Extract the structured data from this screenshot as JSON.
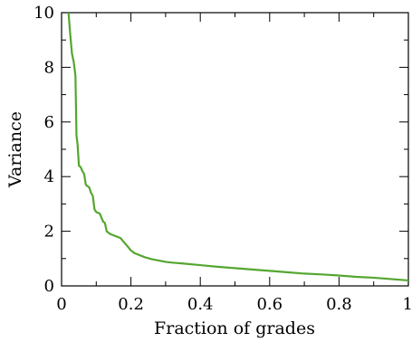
{
  "chart_data": {
    "type": "line",
    "title": "",
    "xlabel": "Fraction of grades",
    "ylabel": "Variance",
    "xlim": [
      0,
      1
    ],
    "ylim": [
      0,
      10
    ],
    "grid": false,
    "legend": "none",
    "x_ticks": [
      "0",
      "0.2",
      "0.4",
      "0.6",
      "0.8",
      "1"
    ],
    "x_tick_values": [
      0,
      0.2,
      0.4,
      0.6,
      0.8,
      1
    ],
    "y_ticks": [
      "0",
      "2",
      "4",
      "6",
      "8",
      "10"
    ],
    "y_tick_values": [
      0,
      2,
      4,
      6,
      8,
      10
    ],
    "series": [
      {
        "color": "#55a630",
        "x": [
          0.02,
          0.025,
          0.03,
          0.035,
          0.04,
          0.043,
          0.046,
          0.05,
          0.055,
          0.06,
          0.065,
          0.07,
          0.075,
          0.08,
          0.085,
          0.09,
          0.095,
          0.1,
          0.11,
          0.12,
          0.125,
          0.13,
          0.14,
          0.15,
          0.16,
          0.17,
          0.18,
          0.19,
          0.2,
          0.21,
          0.22,
          0.24,
          0.26,
          0.28,
          0.3,
          0.32,
          0.35,
          0.4,
          0.45,
          0.5,
          0.55,
          0.6,
          0.65,
          0.7,
          0.75,
          0.8,
          0.85,
          0.9,
          0.95,
          1.0
        ],
        "y": [
          10.0,
          9.2,
          8.5,
          8.2,
          7.7,
          5.5,
          5.2,
          4.4,
          4.35,
          4.2,
          4.1,
          3.7,
          3.65,
          3.6,
          3.4,
          3.3,
          2.8,
          2.7,
          2.65,
          2.35,
          2.3,
          2.0,
          1.9,
          1.85,
          1.8,
          1.75,
          1.6,
          1.45,
          1.3,
          1.2,
          1.15,
          1.05,
          0.98,
          0.93,
          0.88,
          0.85,
          0.82,
          0.76,
          0.7,
          0.65,
          0.6,
          0.55,
          0.5,
          0.45,
          0.42,
          0.38,
          0.33,
          0.3,
          0.25,
          0.2
        ]
      }
    ]
  }
}
